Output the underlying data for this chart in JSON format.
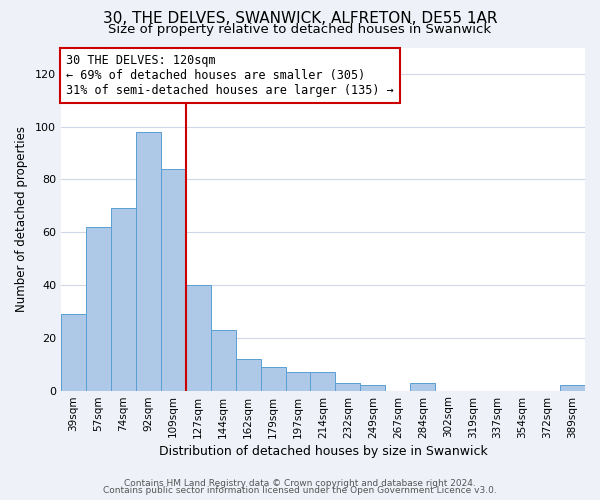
{
  "title": "30, THE DELVES, SWANWICK, ALFRETON, DE55 1AR",
  "subtitle": "Size of property relative to detached houses in Swanwick",
  "xlabel": "Distribution of detached houses by size in Swanwick",
  "ylabel": "Number of detached properties",
  "bar_labels": [
    "39sqm",
    "57sqm",
    "74sqm",
    "92sqm",
    "109sqm",
    "127sqm",
    "144sqm",
    "162sqm",
    "179sqm",
    "197sqm",
    "214sqm",
    "232sqm",
    "249sqm",
    "267sqm",
    "284sqm",
    "302sqm",
    "319sqm",
    "337sqm",
    "354sqm",
    "372sqm",
    "389sqm"
  ],
  "bar_values": [
    29,
    62,
    69,
    98,
    84,
    40,
    23,
    12,
    9,
    7,
    7,
    3,
    2,
    0,
    3,
    0,
    0,
    0,
    0,
    0,
    2
  ],
  "bar_color": "#aec9e8",
  "bar_edgecolor": "#5a9fd4",
  "vline_color": "#cc0000",
  "vline_pos": 4.5,
  "ylim": [
    0,
    130
  ],
  "yticks": [
    0,
    20,
    40,
    60,
    80,
    100,
    120
  ],
  "annotation_title": "30 THE DELVES: 120sqm",
  "annotation_line1": "← 69% of detached houses are smaller (305)",
  "annotation_line2": "31% of semi-detached houses are larger (135) →",
  "annotation_box_color": "#ffffff",
  "annotation_box_edgecolor": "#cc0000",
  "footer1": "Contains HM Land Registry data © Crown copyright and database right 2024.",
  "footer2": "Contains public sector information licensed under the Open Government Licence v3.0.",
  "bg_color": "#eef2f8",
  "plot_bg_color": "#ffffff",
  "grid_color": "#d0d8e8",
  "title_fontsize": 11,
  "subtitle_fontsize": 9.5,
  "xlabel_fontsize": 9,
  "ylabel_fontsize": 8.5,
  "tick_fontsize": 8,
  "xtick_fontsize": 7.5,
  "footer_fontsize": 6.5,
  "annot_fontsize": 8.5
}
